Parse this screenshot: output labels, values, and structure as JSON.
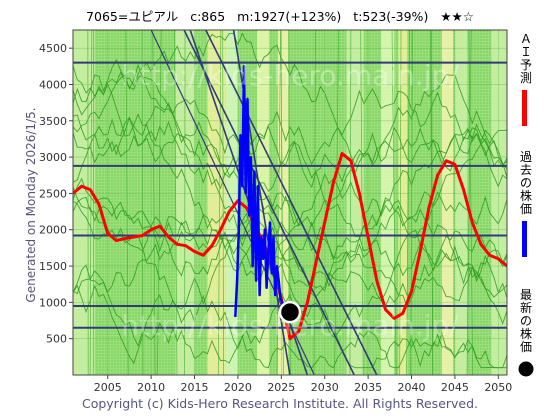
{
  "header": {
    "code": "7065=ユピアル",
    "current": "c:865",
    "max_info": "m:1927(+123%)",
    "target_info": "t:523(-39%)",
    "stars": "★★☆"
  },
  "side_text": "Generated on Monday 2026/1/5.",
  "footer": "Copyright (c) Kids-Hero Research Institute. All Rights Reserved.",
  "watermark": "http://kids-hero.main.jp/",
  "legend": {
    "ai_label": "ＡＩ予測",
    "past_label": "過去の株価",
    "latest_label": "最新の株価",
    "ai_color": "#ff0000",
    "past_color": "#0000ff",
    "latest_color": "#000000"
  },
  "chart_data": {
    "type": "line",
    "xlim": [
      2001,
      2051
    ],
    "ylim": [
      0,
      4750
    ],
    "x_ticks": [
      2005,
      2010,
      2015,
      2020,
      2025,
      2030,
      2035,
      2040,
      2045,
      2050
    ],
    "y_ticks": [
      500,
      1000,
      1500,
      2000,
      2500,
      3000,
      3500,
      4000,
      4500
    ],
    "horizontal_lines": [
      650,
      950,
      1920,
      2880,
      4300
    ],
    "series": [
      {
        "name": "ＡＩ予測",
        "color": "#ff0000",
        "x": [
          2001,
          2002,
          2003,
          2004,
          2005,
          2006,
          2007,
          2008,
          2009,
          2010,
          2011,
          2012,
          2013,
          2014,
          2015,
          2016,
          2017,
          2018,
          2019,
          2020,
          2021,
          2022,
          2023,
          2024,
          2025,
          2026,
          2027,
          2028,
          2029,
          2030,
          2031,
          2032,
          2033,
          2034,
          2035,
          2036,
          2037,
          2038,
          2039,
          2040,
          2041,
          2042,
          2043,
          2044,
          2045,
          2046,
          2047,
          2048,
          2049,
          2050,
          2051
        ],
        "y": [
          2500,
          2600,
          2550,
          2350,
          1950,
          1850,
          1880,
          1900,
          1920,
          2000,
          2050,
          1900,
          1800,
          1780,
          1700,
          1650,
          1780,
          2000,
          2250,
          2400,
          2300,
          2050,
          1800,
          1500,
          1050,
          500,
          600,
          1000,
          1550,
          2100,
          2650,
          3050,
          2950,
          2500,
          1900,
          1300,
          900,
          780,
          850,
          1150,
          1700,
          2300,
          2750,
          2950,
          2900,
          2550,
          2100,
          1800,
          1650,
          1600,
          1500
        ]
      },
      {
        "name": "過去の株価",
        "color": "#0000ff",
        "x": [
          2019.7,
          2019.9,
          2020.1,
          2020.3,
          2020.5,
          2020.7,
          2020.9,
          2021.1,
          2021.3,
          2021.5,
          2021.7,
          2021.9,
          2022.1,
          2022.3,
          2022.5,
          2022.7,
          2022.9,
          2023.1,
          2023.3,
          2023.5,
          2023.7,
          2023.9,
          2024.1,
          2024.3,
          2024.5,
          2024.7,
          2024.9,
          2025.1,
          2025.3,
          2025.5,
          2025.8
        ],
        "y": [
          800,
          1300,
          2000,
          3300,
          2600,
          4250,
          2500,
          3800,
          2200,
          3000,
          1500,
          2800,
          1300,
          2600,
          1100,
          1900,
          1600,
          2000,
          1200,
          1700,
          2100,
          1400,
          1900,
          1100,
          1500,
          1300,
          1050,
          1000,
          950,
          900,
          865
        ]
      }
    ],
    "latest_point": {
      "x": 2026,
      "y": 865
    },
    "trend_lines": [
      {
        "x1": 2010,
        "y1": 4750,
        "x2": 2028.8,
        "y2": 0
      },
      {
        "x1": 2013.8,
        "y1": 4750,
        "x2": 2033.4,
        "y2": 0
      },
      {
        "x1": 2016.3,
        "y1": 4750,
        "x2": 2036,
        "y2": 0
      },
      {
        "x1": 2014.5,
        "y1": 4750,
        "x2": 2028,
        "y2": 0
      },
      {
        "x1": 2019.5,
        "y1": 4750,
        "x2": 2026,
        "y2": 0
      }
    ]
  }
}
